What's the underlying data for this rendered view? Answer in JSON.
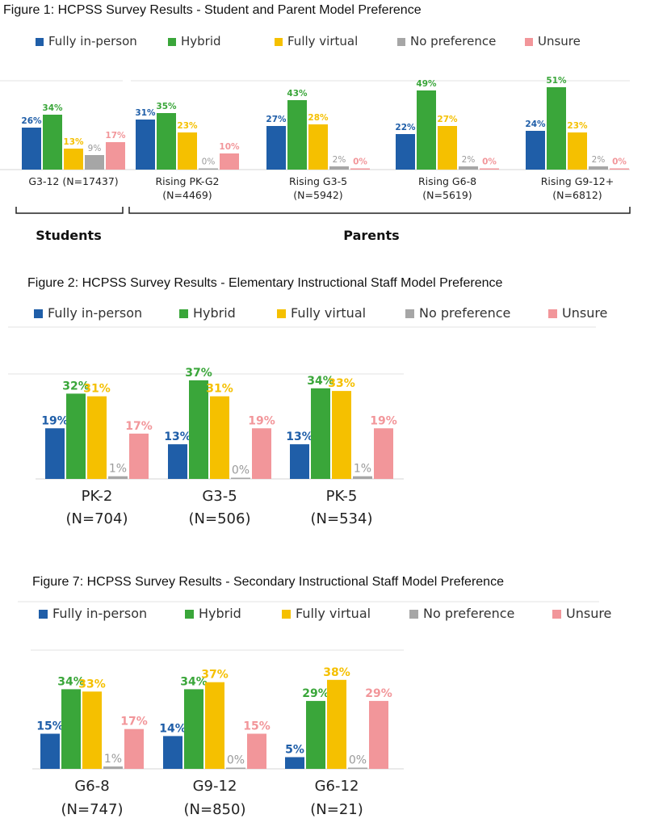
{
  "colors": {
    "fully_in_person": "#1f5ea8",
    "hybrid": "#3aa63a",
    "fully_virtual": "#f5c000",
    "no_preference": "#a6a6a6",
    "unsure": "#f2969a"
  },
  "legend": [
    "Fully in-person",
    "Hybrid",
    "Fully virtual",
    "No preference",
    "Unsure"
  ],
  "chart_data": [
    {
      "type": "bar",
      "title": "Figure 1: HCPSS Survey Results - Student and Parent Model Preference",
      "groups": [
        "Students",
        "Parents"
      ],
      "categories": [
        "G3-12 (N=17437)",
        "Rising PK-G2 (N=4469)",
        "Rising G3-5 (N=5942)",
        "Rising G6-8 (N=5619)",
        "Rising G9-12+ (N=6812)"
      ],
      "category_lines": [
        [
          "G3-12 (N=17437)"
        ],
        [
          "Rising PK-G2",
          "(N=4469)"
        ],
        [
          "Rising G3-5",
          "(N=5942)"
        ],
        [
          "Rising G6-8",
          "(N=5619)"
        ],
        [
          "Rising G9-12+",
          "(N=6812)"
        ]
      ],
      "series": [
        {
          "name": "Fully in-person",
          "values": [
            26,
            31,
            27,
            22,
            24
          ]
        },
        {
          "name": "Hybrid",
          "values": [
            34,
            35,
            43,
            49,
            51
          ]
        },
        {
          "name": "Fully virtual",
          "values": [
            13,
            23,
            28,
            27,
            23
          ]
        },
        {
          "name": "No preference",
          "values": [
            9,
            0,
            2,
            2,
            2
          ]
        },
        {
          "name": "Unsure",
          "values": [
            17,
            10,
            0,
            0,
            0
          ]
        }
      ],
      "value_suffix": "%"
    },
    {
      "type": "bar",
      "title": "Figure 2: HCPSS Survey Results - Elementary Instructional Staff Model Preference",
      "categories": [
        "PK-2 (N=704)",
        "G3-5 (N=506)",
        "PK-5 (N=534)"
      ],
      "category_lines": [
        [
          "PK-2",
          "(N=704)"
        ],
        [
          "G3-5",
          "(N=506)"
        ],
        [
          "PK-5",
          "(N=534)"
        ]
      ],
      "series": [
        {
          "name": "Fully in-person",
          "values": [
            19,
            13,
            13
          ]
        },
        {
          "name": "Hybrid",
          "values": [
            32,
            37,
            34
          ]
        },
        {
          "name": "Fully virtual",
          "values": [
            31,
            31,
            33
          ]
        },
        {
          "name": "No preference",
          "values": [
            1,
            0,
            1
          ]
        },
        {
          "name": "Unsure",
          "values": [
            17,
            19,
            19
          ]
        }
      ],
      "value_suffix": "%"
    },
    {
      "type": "bar",
      "title": "Figure 7: HCPSS Survey Results - Secondary Instructional Staff Model Preference",
      "categories": [
        "G6-8 (N=747)",
        "G9-12 (N=850)",
        "G6-12 (N=21)"
      ],
      "category_lines": [
        [
          "G6-8",
          "(N=747)"
        ],
        [
          "G9-12",
          "(N=850)"
        ],
        [
          "G6-12",
          "(N=21)"
        ]
      ],
      "series": [
        {
          "name": "Fully in-person",
          "values": [
            15,
            14,
            5
          ]
        },
        {
          "name": "Hybrid",
          "values": [
            34,
            34,
            29
          ]
        },
        {
          "name": "Fully virtual",
          "values": [
            33,
            37,
            38
          ]
        },
        {
          "name": "No preference",
          "values": [
            1,
            0,
            0
          ]
        },
        {
          "name": "Unsure",
          "values": [
            17,
            15,
            29
          ]
        }
      ],
      "value_suffix": "%"
    }
  ]
}
